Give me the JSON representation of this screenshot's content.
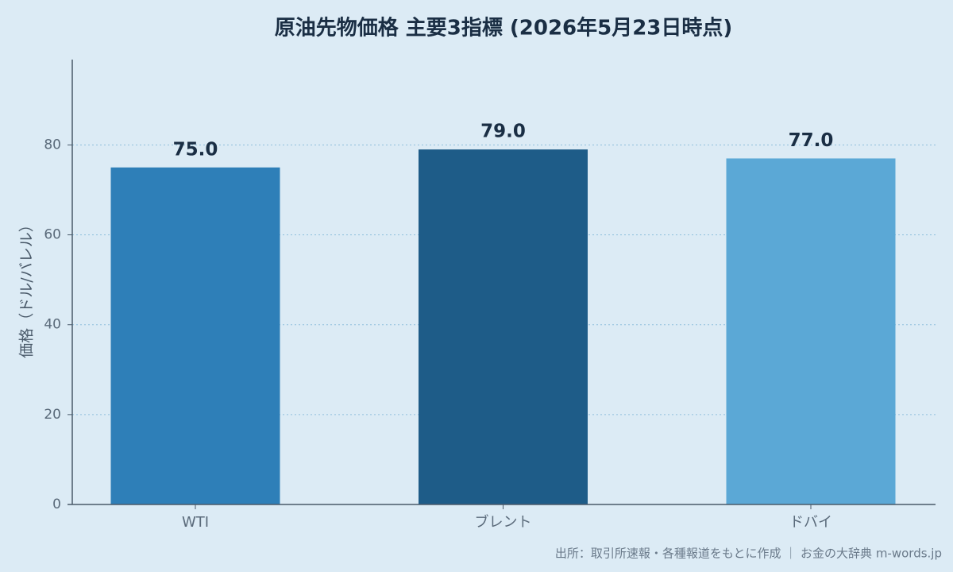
{
  "chart_data": {
    "type": "bar",
    "title": "原油先物価格 主要3指標 (2026年5月23日時点)",
    "ylabel": "価格（ドル/バレル）",
    "categories": [
      "WTI",
      "ブレント",
      "ドバイ"
    ],
    "values": [
      75,
      79,
      77
    ],
    "value_labels": [
      "75.0",
      "79.0",
      "77.0"
    ],
    "colors": [
      "#2e7fb8",
      "#1e5c88",
      "#5ba8d6"
    ],
    "ylim": [
      0,
      99
    ],
    "yticks": [
      0,
      20,
      40,
      60,
      80
    ],
    "grid": true,
    "source": "出所：取引所速報・各種報道をもとに作成 ｜ お金の大辞典 m-words.jp"
  }
}
